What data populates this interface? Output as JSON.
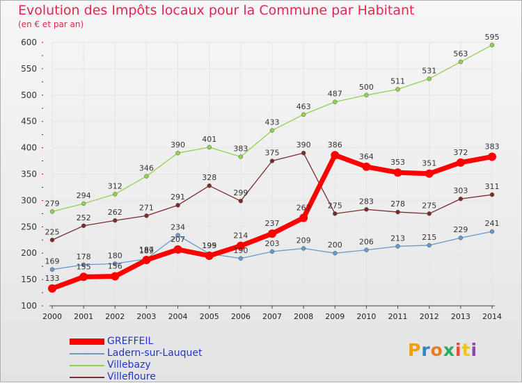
{
  "title": "Evolution des Impôts locaux pour la Commune par Habitant",
  "subtitle": "(en € et par an)",
  "logo": {
    "text": "Proxiti",
    "colors": [
      "#f39c12",
      "#2e86c1",
      "#e67e22",
      "#27ae60",
      "#e74c3c",
      "#f1c40f",
      "#8e44ad"
    ]
  },
  "chart_data": {
    "type": "line",
    "title": "Evolution des Impôts locaux pour la Commune par Habitant",
    "subtitle": "(en € et par an)",
    "xlabel": "",
    "ylabel": "",
    "ylim": [
      100,
      600
    ],
    "yticks": [
      100,
      150,
      200,
      250,
      300,
      350,
      400,
      450,
      500,
      550,
      600
    ],
    "x": [
      "2000",
      "2001",
      "2002",
      "2003",
      "2004",
      "2005",
      "2006",
      "2007",
      "2008",
      "2009",
      "2010",
      "2011",
      "2012",
      "2013",
      "2014"
    ],
    "grid": true,
    "legend_position": "bottom-left",
    "series": [
      {
        "name": "Villebazy",
        "color": "#92d050",
        "values": [
          279,
          294,
          312,
          346,
          390,
          401,
          383,
          433,
          463,
          487,
          500,
          511,
          531,
          563,
          595
        ]
      },
      {
        "name": "Villefloure",
        "color": "#7b2c2c",
        "values": [
          225,
          252,
          262,
          271,
          291,
          328,
          299,
          375,
          390,
          275,
          283,
          278,
          275,
          303,
          311
        ]
      },
      {
        "name": "Ladern-sur-Lauquet",
        "color": "#6699cc",
        "values": [
          169,
          178,
          180,
          189,
          234,
          199,
          190,
          203,
          209,
          200,
          206,
          213,
          215,
          229,
          241
        ]
      },
      {
        "name": "GREFFEIL",
        "color": "#ff0000",
        "values": [
          133,
          155,
          156,
          187,
          207,
          195,
          214,
          237,
          267,
          386,
          364,
          353,
          351,
          372,
          383
        ],
        "bold": true
      }
    ],
    "legend_order": [
      "GREFFEIL",
      "Ladern-sur-Lauquet",
      "Villebazy",
      "Villefloure"
    ]
  }
}
